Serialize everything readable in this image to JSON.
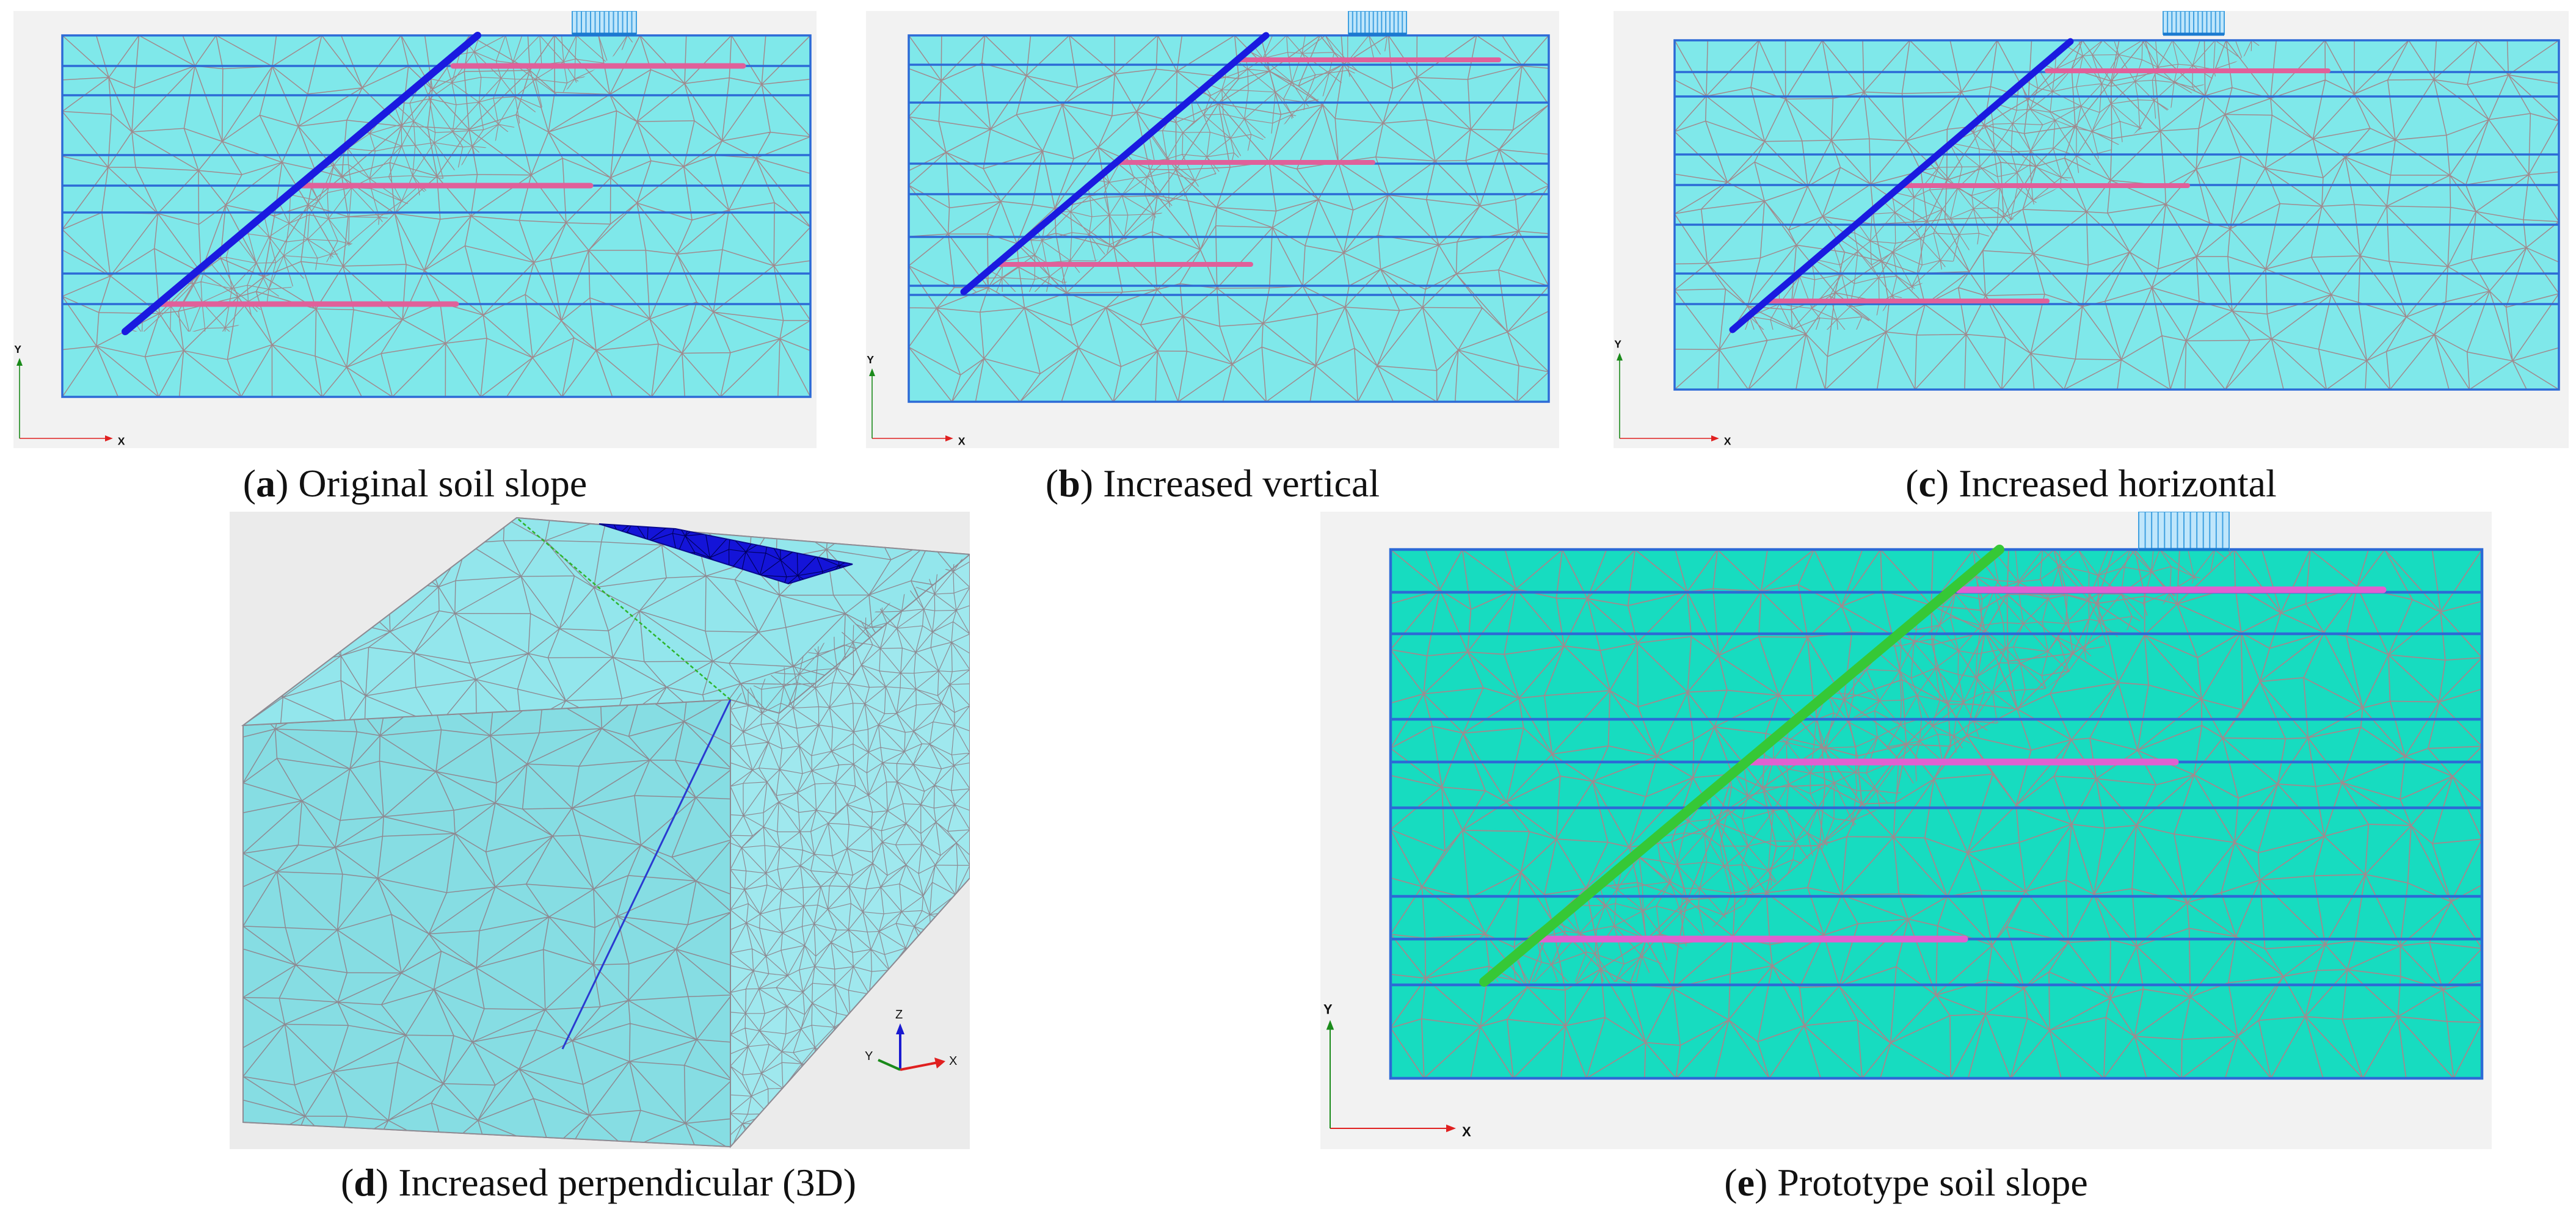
{
  "figure": {
    "panels": [
      {
        "id": "a",
        "letter": "a",
        "title": "Original soil slope",
        "axis_x": "X",
        "axis_y": "Y",
        "colors": {
          "soil": "#7fe8ea",
          "layer_line": "#2c6ad6",
          "mesh": "#a08a8e",
          "wall": "#1a1ae0",
          "nail": "#e0609a",
          "load": "#3fa0e0"
        }
      },
      {
        "id": "b",
        "letter": "b",
        "title": "Increased vertical",
        "axis_x": "X",
        "axis_y": "Y",
        "colors": {
          "soil": "#7fe8ea",
          "layer_line": "#2c6ad6",
          "mesh": "#a08a8e",
          "wall": "#1a1ae0",
          "nail": "#e0609a",
          "load": "#3fa0e0"
        }
      },
      {
        "id": "c",
        "letter": "c",
        "title": "Increased horizontal",
        "axis_x": "X",
        "axis_y": "Y",
        "colors": {
          "soil": "#7fe8ea",
          "layer_line": "#2c6ad6",
          "mesh": "#a08a8e",
          "wall": "#1a1ae0",
          "nail": "#e0609a",
          "load": "#3fa0e0"
        }
      },
      {
        "id": "d",
        "letter": "d",
        "title": "Increased perpendicular (3D)",
        "axis_x": "X",
        "axis_y": "Y",
        "axis_z": "Z",
        "colors": {
          "soil": "#8ee4ea",
          "mesh": "#8e8a92",
          "load_strip": "#1414d8"
        }
      },
      {
        "id": "e",
        "letter": "e",
        "title": "Prototype soil slope",
        "axis_x": "X",
        "axis_y": "Y",
        "colors": {
          "soil": "#17dcc0",
          "layer_line": "#2c6ad6",
          "mesh": "#a08a8e",
          "wall": "#36c836",
          "nail": "#e060d0",
          "load": "#3fa0e0"
        }
      }
    ]
  }
}
